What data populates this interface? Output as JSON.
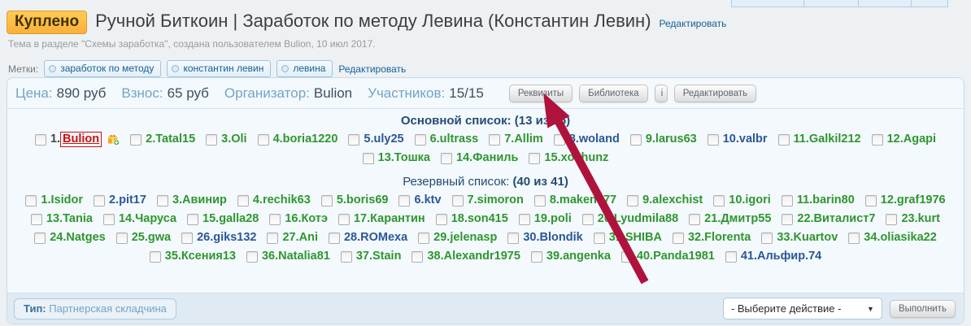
{
  "colors": {
    "badge_bg": "#f9b13c",
    "link_blue": "#176093",
    "member_green": "#2f962f",
    "member_blue": "#2b5797",
    "member_red": "#cc1111",
    "panel_bg": "#f3f9fd",
    "panel_border": "#c5dbe9",
    "footer_bg": "#dfeaf3",
    "arrow": "#b0123e"
  },
  "header": {
    "status_badge": "Куплено",
    "title": "Ручной Биткоин | Заработок по методу Левина (Константин Левин)",
    "title_edit_link": "Редактировать",
    "subtitle": "Тема в разделе \"Схемы заработка\", создана пользователем Bulion, 10 июл 2017.",
    "tags_label": "Метки:",
    "tags": [
      "заработок по методу",
      "константин левин",
      "левина"
    ],
    "tags_edit_link": "Редактировать"
  },
  "panel": {
    "info": [
      {
        "label": "Цена:",
        "value": "890 руб"
      },
      {
        "label": "Взнос:",
        "value": "65 руб"
      },
      {
        "label": "Организатор:",
        "value": "Bulion"
      },
      {
        "label": "Участников:",
        "value": "15/15"
      }
    ],
    "buttons": {
      "requisites": "Реквизиты",
      "library": "Библиотека",
      "info": "i",
      "edit": "Редактировать"
    },
    "main_list": {
      "title": "Основной список:",
      "count": "(13 из 15)",
      "members": [
        {
          "label": "1.Bulion",
          "color": "red",
          "boxed": true,
          "gift": true
        },
        {
          "label": "2.Tatal15",
          "color": "green"
        },
        {
          "label": "3.Oli",
          "color": "green"
        },
        {
          "label": "4.boria1220",
          "color": "green"
        },
        {
          "label": "5.uly25",
          "color": "blue"
        },
        {
          "label": "6.ultrass",
          "color": "green"
        },
        {
          "label": "7.Allim",
          "color": "green"
        },
        {
          "label": "8.woland",
          "color": "blue"
        },
        {
          "label": "9.larus63",
          "color": "green"
        },
        {
          "label": "10.valbr",
          "color": "blue"
        },
        {
          "label": "11.Galkil212",
          "color": "green"
        },
        {
          "label": "12.Agapi",
          "color": "green"
        },
        {
          "label": "13.Тошка",
          "color": "green"
        },
        {
          "label": "14.Фаниль",
          "color": "green"
        },
        {
          "label": "15.xochunz",
          "color": "green"
        }
      ]
    },
    "reserve_list": {
      "title": "Резервный список:",
      "count": "(40 из 41)",
      "members": [
        {
          "label": "1.Isidor",
          "color": "green"
        },
        {
          "label": "2.pit17",
          "color": "blue"
        },
        {
          "label": "3.Авинир",
          "color": "green"
        },
        {
          "label": "4.rechik63",
          "color": "green"
        },
        {
          "label": "5.boris69",
          "color": "green"
        },
        {
          "label": "6.ktv",
          "color": "blue"
        },
        {
          "label": "7.simoron",
          "color": "green"
        },
        {
          "label": "8.makena77",
          "color": "green"
        },
        {
          "label": "9.alexchist",
          "color": "green"
        },
        {
          "label": "10.igori",
          "color": "green"
        },
        {
          "label": "11.barin80",
          "color": "green"
        },
        {
          "label": "12.graf1976",
          "color": "green"
        },
        {
          "label": "13.Tania",
          "color": "green"
        },
        {
          "label": "14.Чаруса",
          "color": "green"
        },
        {
          "label": "15.galla28",
          "color": "green"
        },
        {
          "label": "16.Котэ",
          "color": "green"
        },
        {
          "label": "17.Карантин",
          "color": "green"
        },
        {
          "label": "18.son415",
          "color": "green"
        },
        {
          "label": "19.poli",
          "color": "green"
        },
        {
          "label": "20.Lyudmila88",
          "color": "green"
        },
        {
          "label": "21.Дмитр55",
          "color": "green"
        },
        {
          "label": "22.Виталист7",
          "color": "green"
        },
        {
          "label": "23.kurt",
          "color": "green"
        },
        {
          "label": "24.Natges",
          "color": "green"
        },
        {
          "label": "25.gwa",
          "color": "green"
        },
        {
          "label": "26.giks132",
          "color": "blue"
        },
        {
          "label": "27.Ani",
          "color": "green"
        },
        {
          "label": "28.ROMexa",
          "color": "blue"
        },
        {
          "label": "29.jelenasp",
          "color": "green"
        },
        {
          "label": "30.Blondik",
          "color": "blue"
        },
        {
          "label": "31.SHIBA",
          "color": "green"
        },
        {
          "label": "32.Florenta",
          "color": "green"
        },
        {
          "label": "33.Kuartov",
          "color": "green"
        },
        {
          "label": "34.oliasika22",
          "color": "green"
        },
        {
          "label": "35.Ксения13",
          "color": "green"
        },
        {
          "label": "36.Natalia81",
          "color": "green"
        },
        {
          "label": "37.Stain",
          "color": "green"
        },
        {
          "label": "38.Alexandr1975",
          "color": "green"
        },
        {
          "label": "39.angenka",
          "color": "green"
        },
        {
          "label": "40.Panda1981",
          "color": "green"
        },
        {
          "label": "41.Альфир.74",
          "color": "blue"
        }
      ]
    },
    "footer": {
      "type_label": "Тип:",
      "type_value": "Партнерская складчина",
      "action_select_value": "- Выберите действие -",
      "execute_button": "Выполнить"
    }
  }
}
